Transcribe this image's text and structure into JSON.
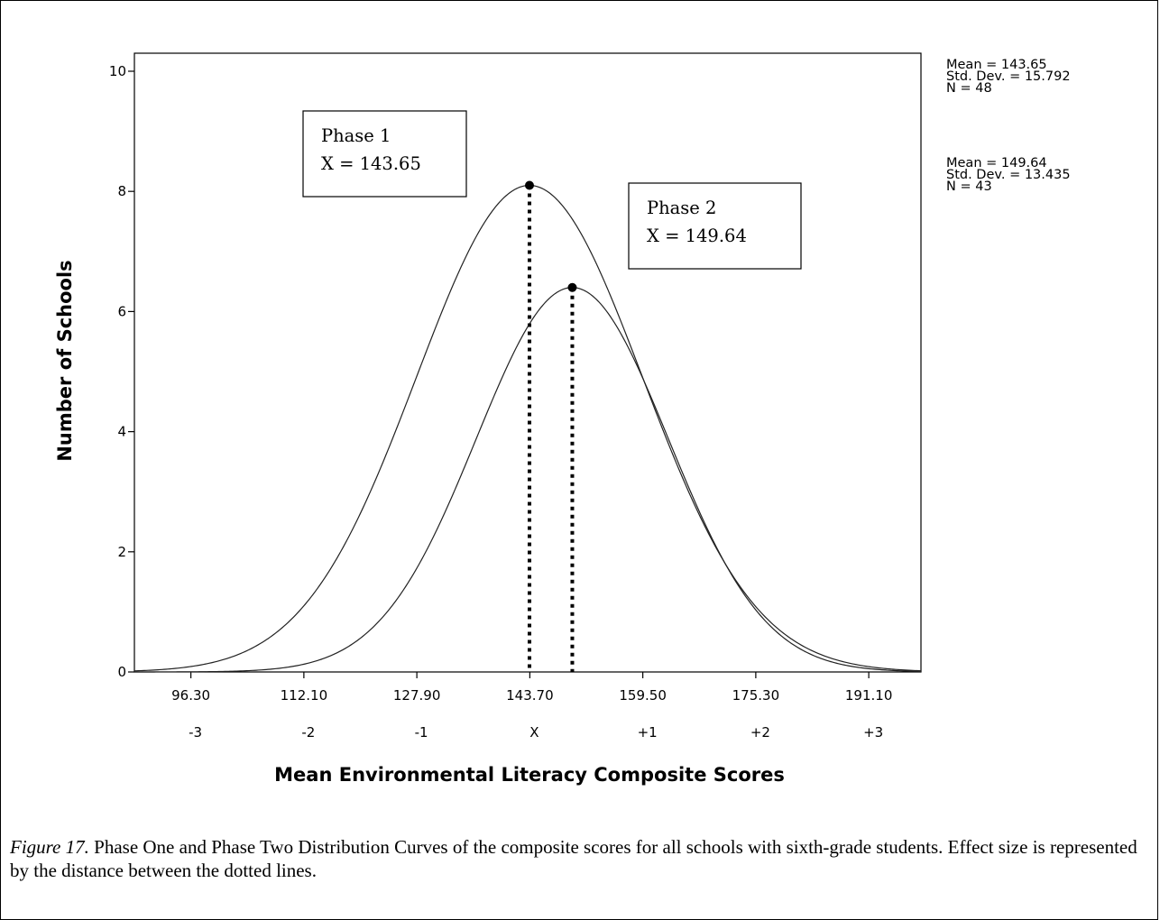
{
  "chart_data": {
    "type": "line",
    "xlabel": "Mean Environmental Literacy Composite Scores",
    "ylabel": "Number of Schools",
    "xlim": [
      88.4,
      198.4
    ],
    "ylim": [
      0,
      10.3
    ],
    "y_ticks": [
      0,
      2,
      4,
      6,
      8,
      10
    ],
    "x_tick_values": [
      96.3,
      112.1,
      127.9,
      143.7,
      159.5,
      175.3,
      191.1
    ],
    "x_tick_labels": [
      "96.30",
      "112.10",
      "127.90",
      "143.70",
      "159.50",
      "175.30",
      "191.10"
    ],
    "sd_labels": [
      "-3",
      "-2",
      "-1",
      "X",
      "+1",
      "+2",
      "+3"
    ],
    "series": [
      {
        "mean": 143.65,
        "peak": 8.1,
        "sd": 15.792,
        "n": 48
      },
      {
        "mean": 149.64,
        "peak": 6.4,
        "sd": 13.435,
        "n": 43
      }
    ],
    "stats": [
      [
        "Mean = 143.65",
        "Std. Dev. = 15.792",
        "N = 48"
      ],
      [
        "Mean = 149.64",
        "Std. Dev. = 13.435",
        "N = 43"
      ]
    ],
    "annotations": [
      {
        "lines": [
          "Phase 1",
          "X = 143.65"
        ]
      },
      {
        "lines": [
          "Phase 2",
          "X =  149.64"
        ]
      }
    ]
  },
  "caption": {
    "figure_number": "Figure 17.",
    "text": "  Phase One and Phase Two Distribution Curves of the composite scores for all schools with sixth-grade students.  Effect size is represented by the distance between the dotted lines."
  }
}
